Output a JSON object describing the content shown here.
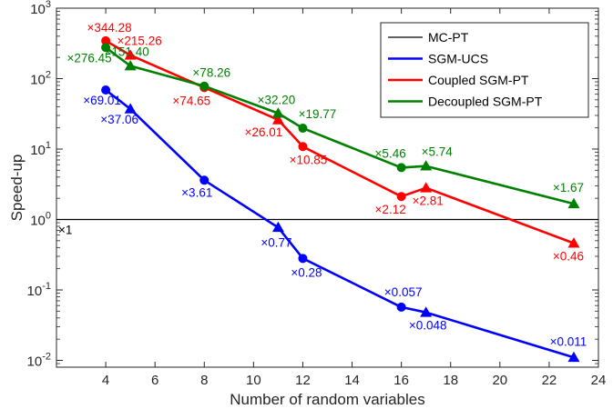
{
  "chart_data": {
    "type": "line",
    "xlabel": "Number of random variables",
    "ylabel": "Speed-up",
    "xlim": [
      2,
      24
    ],
    "ylim": [
      0.008,
      1000
    ],
    "yscale": "log",
    "x_ticks": [
      4,
      6,
      8,
      10,
      12,
      14,
      16,
      18,
      20,
      22,
      24
    ],
    "y_ticks": [
      {
        "value": 0.01,
        "base": "10",
        "exp": "-2"
      },
      {
        "value": 0.1,
        "base": "10",
        "exp": "-1"
      },
      {
        "value": 1,
        "base": "10",
        "exp": "0"
      },
      {
        "value": 10,
        "base": "10",
        "exp": "1"
      },
      {
        "value": 100,
        "base": "10",
        "exp": "2"
      },
      {
        "value": 1000,
        "base": "10",
        "exp": "3"
      }
    ],
    "grid": false,
    "legend_position": "top-right",
    "series": [
      {
        "name": "MC-PT",
        "color": "#000000",
        "reference_value": 1,
        "label": "×1"
      },
      {
        "name": "SGM-UCS",
        "color": "#0000ff",
        "points": [
          {
            "x": 4,
            "y": 69.01,
            "marker": "circle",
            "label": "×69.01"
          },
          {
            "x": 5,
            "y": 37.06,
            "marker": "triangle",
            "label": "×37.06"
          },
          {
            "x": 8,
            "y": 3.61,
            "marker": "circle",
            "label": "×3.61"
          },
          {
            "x": 11,
            "y": 0.77,
            "marker": "triangle",
            "label": "×0.77"
          },
          {
            "x": 12,
            "y": 0.28,
            "marker": "circle",
            "label": "×0.28"
          },
          {
            "x": 16,
            "y": 0.057,
            "marker": "circle",
            "label": "×0.057"
          },
          {
            "x": 17,
            "y": 0.048,
            "marker": "triangle",
            "label": "×0.048"
          },
          {
            "x": 23,
            "y": 0.011,
            "marker": "triangle",
            "label": "×0.011"
          }
        ]
      },
      {
        "name": "Coupled SGM-PT",
        "color": "#ff0000",
        "points": [
          {
            "x": 4,
            "y": 344.28,
            "marker": "circle",
            "label": "×344.28"
          },
          {
            "x": 5,
            "y": 215.26,
            "marker": "triangle",
            "label": "×215.26"
          },
          {
            "x": 8,
            "y": 74.65,
            "marker": "circle",
            "label": "×74.65"
          },
          {
            "x": 11,
            "y": 26.01,
            "marker": "triangle",
            "label": "×26.01"
          },
          {
            "x": 12,
            "y": 10.85,
            "marker": "circle",
            "label": "×10.85"
          },
          {
            "x": 16,
            "y": 2.12,
            "marker": "circle",
            "label": "×2.12"
          },
          {
            "x": 17,
            "y": 2.81,
            "marker": "triangle",
            "label": "×2.81"
          },
          {
            "x": 23,
            "y": 0.46,
            "marker": "triangle",
            "label": "×0.46"
          }
        ]
      },
      {
        "name": "Decoupled SGM-PT",
        "color": "#008000",
        "points": [
          {
            "x": 4,
            "y": 276.45,
            "marker": "circle",
            "label": "×276.45"
          },
          {
            "x": 5,
            "y": 151.4,
            "marker": "triangle",
            "label": "×151.40"
          },
          {
            "x": 8,
            "y": 78.26,
            "marker": "circle",
            "label": "×78.26"
          },
          {
            "x": 11,
            "y": 32.2,
            "marker": "triangle",
            "label": "×32.20"
          },
          {
            "x": 12,
            "y": 19.77,
            "marker": "circle",
            "label": "×19.77"
          },
          {
            "x": 16,
            "y": 5.46,
            "marker": "circle",
            "label": "×5.46"
          },
          {
            "x": 17,
            "y": 5.74,
            "marker": "triangle",
            "label": "×5.74"
          },
          {
            "x": 23,
            "y": 1.67,
            "marker": "triangle",
            "label": "×1.67"
          }
        ]
      }
    ]
  }
}
